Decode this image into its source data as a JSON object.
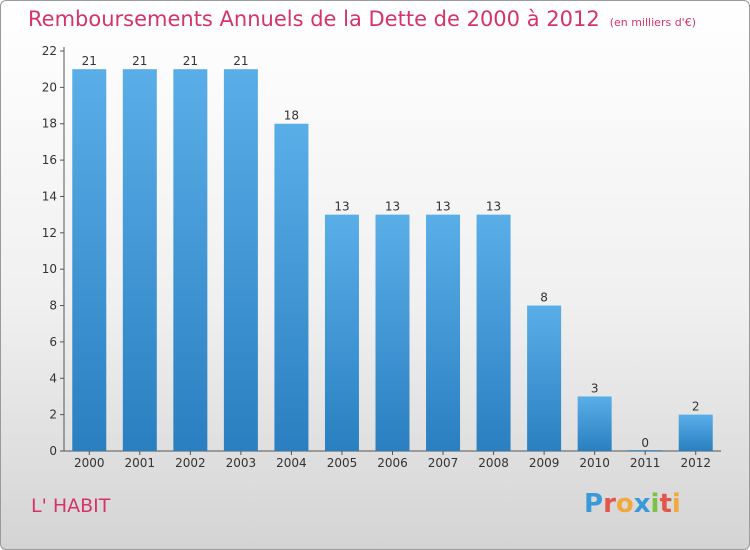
{
  "title": "Remboursements Annuels de la Dette de 2000 à 2012",
  "unit": "(en milliers d'€)",
  "commune": "L' HABIT",
  "logo": {
    "text": "Proxiti",
    "letters": [
      {
        "ch": "P",
        "color": "#3a9ad9"
      },
      {
        "ch": "r",
        "color": "#e2574c"
      },
      {
        "ch": "o",
        "color": "#f2a93b"
      },
      {
        "ch": "x",
        "color": "#3a9ad9"
      },
      {
        "ch": "i",
        "color": "#7cc242"
      },
      {
        "ch": "t",
        "color": "#e2574c"
      },
      {
        "ch": "i",
        "color": "#f2a93b"
      }
    ]
  },
  "colors": {
    "bar_top": "#5aaee8",
    "bar_bottom": "#2a7fc0",
    "title": "#d6336c"
  },
  "chart_data": {
    "type": "bar",
    "title": "Remboursements Annuels de la Dette de 2000 à 2012",
    "xlabel": "",
    "ylabel": "",
    "categories": [
      "2000",
      "2001",
      "2002",
      "2003",
      "2004",
      "2005",
      "2006",
      "2007",
      "2008",
      "2009",
      "2010",
      "2011",
      "2012"
    ],
    "values": [
      21,
      21,
      21,
      21,
      18,
      13,
      13,
      13,
      13,
      8,
      3,
      0,
      2
    ],
    "ylim": [
      0,
      22
    ],
    "yticks": [
      0,
      2,
      4,
      6,
      8,
      10,
      12,
      14,
      16,
      18,
      20,
      22
    ],
    "grid": false,
    "data_labels": true
  }
}
